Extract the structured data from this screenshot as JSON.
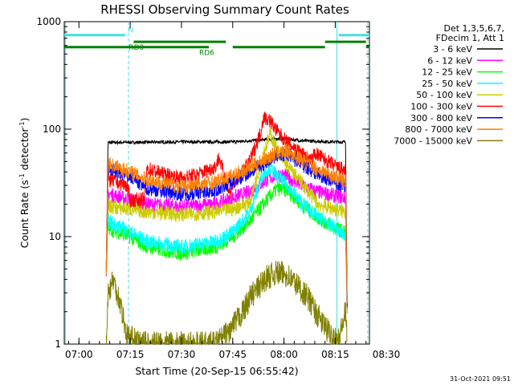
{
  "chart_data": {
    "type": "line",
    "title": "RHESSI Observing Summary Count Rates",
    "xlabel": "Start Time (20-Sep-15 06:55:42)",
    "ylabel_parts": [
      "Count Rate (s",
      "-1",
      " detector",
      "-1",
      ")"
    ],
    "ylabel": "Count Rate (s-1 detector-1)",
    "y_scale": "log",
    "ylim": [
      1,
      1000
    ],
    "xlim_min": [
      55.7,
      145
    ],
    "x_ticks": [
      {
        "m": 60,
        "label": "07:00"
      },
      {
        "m": 75,
        "label": "07:15"
      },
      {
        "m": 90,
        "label": "07:30"
      },
      {
        "m": 105,
        "label": "07:45"
      },
      {
        "m": 120,
        "label": "08:00"
      },
      {
        "m": 135,
        "label": "08:15"
      },
      {
        "m": 150,
        "label": "08:30"
      }
    ],
    "y_ticks": [
      {
        "v": 1,
        "label": "1"
      },
      {
        "v": 10,
        "label": "10"
      },
      {
        "v": 100,
        "label": "100"
      },
      {
        "v": 1000,
        "label": "1000"
      }
    ],
    "legend_title": [
      "Det 1,3,5,6,7,",
      "FDecim 1, Att 1"
    ],
    "legend_position": "right",
    "series": [
      {
        "name": "3 - 6 keV",
        "color": "#000000",
        "pts": [
          [
            68,
            5
          ],
          [
            68.5,
            75
          ],
          [
            90,
            76
          ],
          [
            105,
            76
          ],
          [
            115,
            80
          ],
          [
            120,
            82
          ],
          [
            125,
            78
          ],
          [
            135,
            76
          ],
          [
            138,
            76
          ],
          [
            138.5,
            2
          ]
        ]
      },
      {
        "name": "6 - 12 keV",
        "color": "#ff00ff",
        "pts": [
          [
            68,
            5
          ],
          [
            68.5,
            25
          ],
          [
            75,
            22
          ],
          [
            80,
            20
          ],
          [
            90,
            19
          ],
          [
            100,
            20
          ],
          [
            105,
            23
          ],
          [
            110,
            26
          ],
          [
            115,
            34
          ],
          [
            118,
            38
          ],
          [
            121,
            36
          ],
          [
            125,
            30
          ],
          [
            130,
            26
          ],
          [
            135,
            24
          ],
          [
            138,
            23
          ],
          [
            138.5,
            2
          ]
        ]
      },
      {
        "name": "12 - 25 keV",
        "color": "#00ff00",
        "pts": [
          [
            68,
            5
          ],
          [
            68.5,
            12
          ],
          [
            75,
            10
          ],
          [
            80,
            8
          ],
          [
            90,
            7
          ],
          [
            100,
            8
          ],
          [
            105,
            10
          ],
          [
            110,
            14
          ],
          [
            115,
            22
          ],
          [
            118,
            28
          ],
          [
            121,
            27
          ],
          [
            125,
            20
          ],
          [
            130,
            15
          ],
          [
            135,
            12
          ],
          [
            138,
            11
          ],
          [
            138.5,
            2
          ]
        ]
      },
      {
        "name": "25 - 50 keV",
        "color": "#00ffff",
        "pts": [
          [
            68,
            5
          ],
          [
            68.5,
            14
          ],
          [
            75,
            11
          ],
          [
            80,
            9
          ],
          [
            90,
            8
          ],
          [
            100,
            9
          ],
          [
            105,
            11
          ],
          [
            110,
            17
          ],
          [
            114,
            40
          ],
          [
            116,
            44
          ],
          [
            118,
            36
          ],
          [
            121,
            30
          ],
          [
            125,
            21
          ],
          [
            130,
            15
          ],
          [
            135,
            12
          ],
          [
            138,
            10
          ],
          [
            138.5,
            2
          ]
        ]
      },
      {
        "name": "50 - 100 keV",
        "color": "#cccc00",
        "pts": [
          [
            68,
            5
          ],
          [
            68.5,
            19
          ],
          [
            75,
            18
          ],
          [
            80,
            17
          ],
          [
            90,
            16
          ],
          [
            100,
            17
          ],
          [
            105,
            18
          ],
          [
            110,
            21
          ],
          [
            114,
            60
          ],
          [
            116,
            90
          ],
          [
            118,
            64
          ],
          [
            121,
            45
          ],
          [
            125,
            32
          ],
          [
            130,
            20
          ],
          [
            135,
            18
          ],
          [
            138,
            17
          ],
          [
            138.5,
            2
          ]
        ]
      },
      {
        "name": "100 - 300 keV",
        "color": "#ff0000",
        "pts": [
          [
            68,
            5
          ],
          [
            68.5,
            34
          ],
          [
            74,
            30
          ],
          [
            75,
            22
          ],
          [
            79,
            22
          ],
          [
            80,
            43
          ],
          [
            85,
            38
          ],
          [
            90,
            35
          ],
          [
            95,
            38
          ],
          [
            100,
            45
          ],
          [
            101,
            55
          ],
          [
            104,
            25
          ],
          [
            105,
            30
          ],
          [
            110,
            50
          ],
          [
            113,
            90
          ],
          [
            114,
            130
          ],
          [
            116,
            120
          ],
          [
            118,
            95
          ],
          [
            121,
            75
          ],
          [
            125,
            60
          ],
          [
            128,
            50
          ],
          [
            129,
            60
          ],
          [
            135,
            45
          ],
          [
            138,
            41
          ],
          [
            138.5,
            2
          ]
        ]
      },
      {
        "name": "300 - 800 keV",
        "color": "#0000ff",
        "pts": [
          [
            68,
            5
          ],
          [
            68.5,
            43
          ],
          [
            75,
            36
          ],
          [
            80,
            28
          ],
          [
            90,
            25
          ],
          [
            100,
            27
          ],
          [
            105,
            32
          ],
          [
            110,
            40
          ],
          [
            115,
            50
          ],
          [
            118,
            57
          ],
          [
            121,
            58
          ],
          [
            125,
            48
          ],
          [
            130,
            38
          ],
          [
            135,
            32
          ],
          [
            138,
            30
          ],
          [
            138.5,
            2
          ]
        ]
      },
      {
        "name": "800 - 7000 keV",
        "color": "#ff8000",
        "pts": [
          [
            68,
            5
          ],
          [
            68.5,
            48
          ],
          [
            75,
            40
          ],
          [
            80,
            34
          ],
          [
            90,
            29
          ],
          [
            100,
            32
          ],
          [
            105,
            37
          ],
          [
            110,
            44
          ],
          [
            115,
            54
          ],
          [
            118,
            60
          ],
          [
            121,
            62
          ],
          [
            125,
            52
          ],
          [
            130,
            42
          ],
          [
            135,
            36
          ],
          [
            138,
            32
          ],
          [
            138.5,
            2
          ]
        ]
      },
      {
        "name": "7000 - 15000 keV",
        "color": "#808000",
        "pts": [
          [
            68,
            1
          ],
          [
            68.5,
            3
          ],
          [
            70,
            4
          ],
          [
            72,
            2.5
          ],
          [
            74,
            1.2
          ],
          [
            78,
            1
          ],
          [
            82,
            1
          ],
          [
            88,
            1
          ],
          [
            92,
            1
          ],
          [
            100,
            1
          ],
          [
            104,
            1.3
          ],
          [
            108,
            2
          ],
          [
            110,
            2.7
          ],
          [
            113,
            3.5
          ],
          [
            115,
            4.2
          ],
          [
            118,
            4.6
          ],
          [
            121,
            4.4
          ],
          [
            124,
            3.5
          ],
          [
            127,
            2.7
          ],
          [
            130,
            1.8
          ],
          [
            133,
            1.3
          ],
          [
            136,
            1.1
          ],
          [
            138,
            2
          ],
          [
            138.5,
            1
          ]
        ]
      }
    ],
    "status_bars": [
      {
        "label": "N",
        "color": "#40e0e0",
        "v": 750,
        "segments": [
          [
            55.7,
            73.5
          ],
          [
            136,
            145
          ]
        ]
      },
      {
        "label": "RD0",
        "color": "#008000",
        "v": 650,
        "segments": [
          [
            76,
            103
          ],
          [
            132,
            144
          ]
        ]
      },
      {
        "label": "RD6",
        "color": "#008000",
        "v": 580,
        "segments": [
          [
            55.7,
            98
          ],
          [
            105,
            132
          ],
          [
            144,
            145
          ]
        ]
      }
    ],
    "vertical_lines_solid": [
      56,
      135.5
    ],
    "vertical_lines_dashed": [
      74.5,
      149
    ],
    "timestamp": "31-Oct-2021 09:51"
  }
}
